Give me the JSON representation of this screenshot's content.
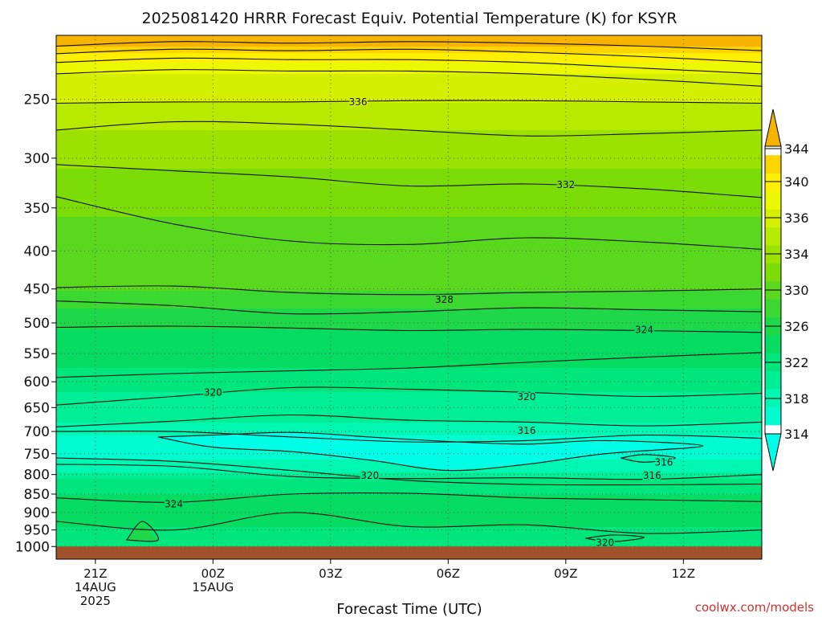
{
  "chart_data": {
    "type": "heatmap",
    "subtype": "filled-contour time-height cross section",
    "title": "2025081420 HRRR Forecast Equiv. Potential Temperature (K) for KSYR",
    "xlabel": "Forecast Time (UTC)",
    "ylabel": "",
    "y_scale": "log-pressure (inverted)",
    "y_ticks": [
      250,
      300,
      350,
      400,
      450,
      500,
      550,
      600,
      650,
      700,
      750,
      800,
      850,
      900,
      950,
      1000
    ],
    "y_range_hPa": [
      1040,
      205
    ],
    "x_ticks": [
      {
        "label": "21Z",
        "sub1": "14AUG",
        "sub2": "2025",
        "hour": 1
      },
      {
        "label": "00Z",
        "sub1": "15AUG",
        "sub2": "",
        "hour": 4
      },
      {
        "label": "03Z",
        "sub1": "",
        "sub2": "",
        "hour": 7
      },
      {
        "label": "06Z",
        "sub1": "",
        "sub2": "",
        "hour": 10
      },
      {
        "label": "09Z",
        "sub1": "",
        "sub2": "",
        "hour": 13
      },
      {
        "label": "12Z",
        "sub1": "",
        "sub2": "",
        "hour": 16
      }
    ],
    "x_range_hours": [
      0,
      18
    ],
    "grid": true,
    "colorbar": {
      "ticks": [
        314,
        318,
        322,
        326,
        330,
        334,
        336,
        340,
        344
      ],
      "bins": [
        {
          "lo": 312,
          "hi": 314,
          "color": "#00ffe6"
        },
        {
          "lo": 314,
          "hi": 316,
          "color": "#00fcd0"
        },
        {
          "lo": 316,
          "hi": 318,
          "color": "#00f7b2"
        },
        {
          "lo": 318,
          "hi": 320,
          "color": "#00ef96"
        },
        {
          "lo": 320,
          "hi": 322,
          "color": "#00e67c"
        },
        {
          "lo": 322,
          "hi": 324,
          "color": "#06dc62"
        },
        {
          "lo": 324,
          "hi": 326,
          "color": "#1ed84a"
        },
        {
          "lo": 326,
          "hi": 328,
          "color": "#3cd832"
        },
        {
          "lo": 328,
          "hi": 330,
          "color": "#5ad81e"
        },
        {
          "lo": 330,
          "hi": 332,
          "color": "#7cdc08"
        },
        {
          "lo": 332,
          "hi": 334,
          "color": "#9be200"
        },
        {
          "lo": 334,
          "hi": 336,
          "color": "#b8ea00"
        },
        {
          "lo": 336,
          "hi": 338,
          "color": "#d4f000"
        },
        {
          "lo": 338,
          "hi": 340,
          "color": "#ecf800"
        },
        {
          "lo": 340,
          "hi": 342,
          "color": "#fcf000"
        },
        {
          "lo": 342,
          "hi": 344,
          "color": "#fcd400"
        },
        {
          "lo": 344,
          "hi": 346,
          "color": "#f6b400"
        }
      ]
    },
    "contour_labels": [
      {
        "text": "336",
        "hour": 7.7,
        "p": 252
      },
      {
        "text": "332",
        "hour": 13.0,
        "p": 326
      },
      {
        "text": "328",
        "hour": 9.9,
        "p": 465
      },
      {
        "text": "324",
        "hour": 15.0,
        "p": 511
      },
      {
        "text": "320",
        "hour": 4.0,
        "p": 620
      },
      {
        "text": "320",
        "hour": 12.0,
        "p": 629
      },
      {
        "text": "316",
        "hour": 12.0,
        "p": 698
      },
      {
        "text": "316",
        "hour": 15.5,
        "p": 770
      },
      {
        "text": "316",
        "hour": 15.2,
        "p": 803
      },
      {
        "text": "320",
        "hour": 8.0,
        "p": 803
      },
      {
        "text": "324",
        "hour": 3.0,
        "p": 877
      },
      {
        "text": "320",
        "hour": 14.0,
        "p": 988
      }
    ],
    "contours": [
      {
        "level": 344,
        "pts": [
          [
            0,
            212
          ],
          [
            3,
            209
          ],
          [
            6,
            210
          ],
          [
            9,
            209
          ],
          [
            12,
            210
          ],
          [
            15,
            212
          ],
          [
            18,
            215
          ]
        ]
      },
      {
        "level": 342,
        "pts": [
          [
            0,
            217
          ],
          [
            3,
            214
          ],
          [
            6,
            215
          ],
          [
            9,
            214
          ],
          [
            12,
            216
          ],
          [
            15,
            219
          ],
          [
            18,
            223
          ]
        ]
      },
      {
        "level": 340,
        "pts": [
          [
            0,
            223
          ],
          [
            3,
            220
          ],
          [
            6,
            221
          ],
          [
            9,
            221
          ],
          [
            12,
            223
          ],
          [
            15,
            227
          ],
          [
            18,
            231
          ]
        ]
      },
      {
        "level": 338,
        "pts": [
          [
            0,
            231
          ],
          [
            3,
            228
          ],
          [
            6,
            229
          ],
          [
            9,
            229
          ],
          [
            12,
            231
          ],
          [
            15,
            235
          ],
          [
            18,
            240
          ]
        ]
      },
      {
        "level": 336,
        "pts": [
          [
            0,
            253
          ],
          [
            3,
            252
          ],
          [
            6,
            252
          ],
          [
            9,
            251
          ],
          [
            12,
            251
          ],
          [
            15,
            252
          ],
          [
            18,
            253
          ]
        ]
      },
      {
        "level": 334,
        "pts": [
          [
            0,
            275
          ],
          [
            3,
            268
          ],
          [
            6,
            270
          ],
          [
            9,
            275
          ],
          [
            12,
            280
          ],
          [
            15,
            278
          ],
          [
            18,
            275
          ]
        ]
      },
      {
        "level": 332,
        "pts": [
          [
            0,
            306
          ],
          [
            3,
            312
          ],
          [
            6,
            318
          ],
          [
            9,
            327
          ],
          [
            12,
            325
          ],
          [
            15,
            330
          ],
          [
            18,
            339
          ]
        ]
      },
      {
        "level": 330,
        "pts": [
          [
            0,
            338
          ],
          [
            3,
            368
          ],
          [
            6,
            388
          ],
          [
            9,
            392
          ],
          [
            12,
            384
          ],
          [
            15,
            389
          ],
          [
            18,
            398
          ]
        ]
      },
      {
        "level": 328,
        "pts": [
          [
            0,
            448
          ],
          [
            3,
            446
          ],
          [
            6,
            455
          ],
          [
            9,
            458
          ],
          [
            12,
            455
          ],
          [
            15,
            453
          ],
          [
            18,
            450
          ]
        ]
      },
      {
        "level": 326,
        "pts": [
          [
            0,
            467
          ],
          [
            3,
            474
          ],
          [
            6,
            486
          ],
          [
            9,
            483
          ],
          [
            12,
            477
          ],
          [
            15,
            480
          ],
          [
            18,
            483
          ]
        ]
      },
      {
        "level": 324,
        "pts": [
          [
            0,
            507
          ],
          [
            3,
            505
          ],
          [
            6,
            508
          ],
          [
            9,
            512
          ],
          [
            12,
            510
          ],
          [
            15,
            512
          ],
          [
            18,
            515
          ]
        ]
      },
      {
        "level": 322,
        "pts": [
          [
            0,
            592
          ],
          [
            3,
            585
          ],
          [
            6,
            580
          ],
          [
            9,
            575
          ],
          [
            12,
            565
          ],
          [
            15,
            556
          ],
          [
            18,
            548
          ]
        ]
      },
      {
        "level": 320,
        "pts": [
          [
            0,
            645
          ],
          [
            3,
            628
          ],
          [
            6,
            611
          ],
          [
            9,
            614
          ],
          [
            12,
            620
          ],
          [
            15,
            628
          ],
          [
            18,
            622
          ]
        ]
      },
      {
        "level": 318,
        "pts": [
          [
            0,
            690
          ],
          [
            3,
            678
          ],
          [
            6,
            665
          ],
          [
            9,
            676
          ],
          [
            12,
            680
          ],
          [
            15,
            688
          ],
          [
            18,
            680
          ]
        ]
      },
      {
        "level": 316,
        "pts": [
          [
            0,
            700
          ],
          [
            3,
            700
          ],
          [
            6,
            712
          ],
          [
            9,
            723
          ],
          [
            12,
            720
          ],
          [
            15,
            708
          ],
          [
            18,
            715
          ]
        ]
      },
      {
        "level": 320,
        "pts": [
          [
            0,
            775
          ],
          [
            3,
            780
          ],
          [
            6,
            805
          ],
          [
            9,
            810
          ],
          [
            12,
            808
          ],
          [
            15,
            812
          ],
          [
            18,
            800
          ]
        ]
      },
      {
        "level": 318,
        "pts": [
          [
            0,
            760
          ],
          [
            3,
            768
          ],
          [
            6,
            790
          ],
          [
            9,
            815
          ],
          [
            12,
            825
          ],
          [
            15,
            826
          ],
          [
            18,
            824
          ]
        ]
      },
      {
        "level": 324,
        "pts": [
          [
            0,
            860
          ],
          [
            3,
            872
          ],
          [
            6,
            850
          ],
          [
            9,
            848
          ],
          [
            12,
            860
          ],
          [
            15,
            865
          ],
          [
            18,
            870
          ]
        ]
      },
      {
        "level": 322,
        "pts": [
          [
            0,
            925
          ],
          [
            3,
            950
          ],
          [
            6,
            900
          ],
          [
            9,
            940
          ],
          [
            12,
            935
          ],
          [
            15,
            960
          ],
          [
            18,
            950
          ]
        ]
      }
    ],
    "closed_contours": [
      {
        "level": 314,
        "pts": [
          [
            2.6,
            712
          ],
          [
            4,
            708
          ],
          [
            6,
            702
          ],
          [
            8,
            712
          ],
          [
            10,
            722
          ],
          [
            12,
            728
          ],
          [
            14,
            720
          ],
          [
            16.5,
            732
          ],
          [
            14,
            750
          ],
          [
            12,
            775
          ],
          [
            10,
            790
          ],
          [
            8,
            765
          ],
          [
            6,
            745
          ],
          [
            4,
            735
          ],
          [
            2.6,
            712
          ]
        ]
      },
      {
        "level": 316,
        "pts": [
          [
            14.4,
            760
          ],
          [
            15,
            752
          ],
          [
            15.8,
            760
          ],
          [
            15,
            770
          ],
          [
            14.4,
            760
          ]
        ]
      },
      {
        "level": 324,
        "pts": [
          [
            1.8,
            980
          ],
          [
            2.2,
            925
          ],
          [
            2.6,
            980
          ],
          [
            1.8,
            980
          ]
        ]
      },
      {
        "level": 320,
        "pts": [
          [
            13.5,
            975
          ],
          [
            14.2,
            965
          ],
          [
            15,
            972
          ],
          [
            14.2,
            985
          ],
          [
            13.5,
            975
          ]
        ]
      }
    ],
    "surface": {
      "p_top": 1000,
      "color": "#a0522d"
    }
  },
  "footer": {
    "credit": "coolwx.com/models"
  }
}
